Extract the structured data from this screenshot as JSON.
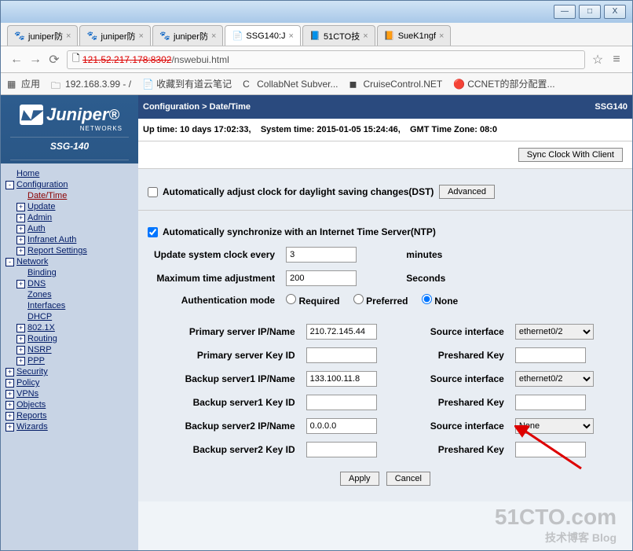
{
  "window": {
    "min": "—",
    "max": "□",
    "close": "X"
  },
  "tabs": [
    {
      "label": "juniper防",
      "fav": "🐾"
    },
    {
      "label": "juniper防",
      "fav": "🐾"
    },
    {
      "label": "juniper防",
      "fav": "🐾"
    },
    {
      "label": "SSG140:J",
      "fav": "📄",
      "active": true
    },
    {
      "label": "51CTO技",
      "fav": "📘"
    },
    {
      "label": "SueK1ngf",
      "fav": "📙"
    }
  ],
  "address": {
    "strike": "121.52.217.178:8302",
    "path": "/nswebui.html",
    "star": "☆",
    "menu": "≡"
  },
  "bookmarks": [
    {
      "ico": "▦",
      "label": "应用"
    },
    {
      "ico": "🗀",
      "label": "192.168.3.99 - /"
    },
    {
      "ico": "📄",
      "label": "收藏到有道云笔记"
    },
    {
      "ico": "C",
      "label": "CollabNet Subver..."
    },
    {
      "ico": "◼",
      "label": "CruiseControl.NET"
    },
    {
      "ico": "🔴",
      "label": "CCNET的部分配置..."
    }
  ],
  "bluebar": {
    "breadcrumb": "Configuration > Date/Time",
    "tag": "SSG140"
  },
  "logo": {
    "brand": "Juniper",
    "networks": "NETWORKS",
    "model": "SSG-140"
  },
  "tree": [
    {
      "ind": 0,
      "tg": "",
      "lbl": "Home"
    },
    {
      "ind": 0,
      "tg": "-",
      "lbl": "Configuration"
    },
    {
      "ind": 1,
      "tg": "",
      "lbl": "Date/Time",
      "sel": true
    },
    {
      "ind": 1,
      "tg": "+",
      "lbl": "Update"
    },
    {
      "ind": 1,
      "tg": "+",
      "lbl": "Admin"
    },
    {
      "ind": 1,
      "tg": "+",
      "lbl": "Auth"
    },
    {
      "ind": 1,
      "tg": "+",
      "lbl": "Infranet Auth"
    },
    {
      "ind": 1,
      "tg": "+",
      "lbl": "Report Settings"
    },
    {
      "ind": 0,
      "tg": "-",
      "lbl": "Network"
    },
    {
      "ind": 1,
      "tg": "",
      "lbl": "Binding"
    },
    {
      "ind": 1,
      "tg": "+",
      "lbl": "DNS"
    },
    {
      "ind": 1,
      "tg": "",
      "lbl": "Zones"
    },
    {
      "ind": 1,
      "tg": "",
      "lbl": "Interfaces"
    },
    {
      "ind": 1,
      "tg": "",
      "lbl": "DHCP"
    },
    {
      "ind": 1,
      "tg": "+",
      "lbl": "802.1X"
    },
    {
      "ind": 1,
      "tg": "+",
      "lbl": "Routing"
    },
    {
      "ind": 1,
      "tg": "+",
      "lbl": "NSRP"
    },
    {
      "ind": 1,
      "tg": "+",
      "lbl": "PPP"
    },
    {
      "ind": 0,
      "tg": "+",
      "lbl": "Security"
    },
    {
      "ind": 0,
      "tg": "+",
      "lbl": "Policy"
    },
    {
      "ind": 0,
      "tg": "+",
      "lbl": "VPNs"
    },
    {
      "ind": 0,
      "tg": "+",
      "lbl": "Objects"
    },
    {
      "ind": 0,
      "tg": "+",
      "lbl": "Reports"
    },
    {
      "ind": 0,
      "tg": "+",
      "lbl": "Wizards"
    }
  ],
  "status": {
    "uptime": "Up time: 10 days 17:02:33,",
    "systime": "System time: 2015-01-05 15:24:46,",
    "tz": "GMT Time Zone: 08:0"
  },
  "buttons": {
    "sync": "Sync Clock With Client",
    "advanced": "Advanced",
    "apply": "Apply",
    "cancel": "Cancel"
  },
  "dst": {
    "checked": false,
    "label": "Automatically adjust clock for daylight saving changes(DST)"
  },
  "ntp": {
    "checked": true,
    "label": "Automatically synchronize with an Internet Time Server(NTP)",
    "interval_lbl": "Update system clock every",
    "interval_val": "3",
    "interval_unit": "minutes",
    "maxadj_lbl": "Maximum time adjustment",
    "maxadj_val": "200",
    "maxadj_unit": "Seconds",
    "auth_lbl": "Authentication mode",
    "auth_required": "Required",
    "auth_preferred": "Preferred",
    "auth_none": "None",
    "auth_sel": "none"
  },
  "servers": {
    "labels": {
      "srcif": "Source interface",
      "keyid": "Key ID",
      "psk": "Preshared Key"
    },
    "primary": {
      "ip_lbl": "Primary server IP/Name",
      "ip": "210.72.145.44",
      "srcif": "ethernet0/2",
      "keyid_lbl": "Primary server Key ID",
      "keyid": "",
      "psk": ""
    },
    "b1": {
      "ip_lbl": "Backup server1 IP/Name",
      "ip": "133.100.11.8",
      "srcif": "ethernet0/2",
      "keyid_lbl": "Backup server1 Key ID",
      "keyid": "",
      "psk": ""
    },
    "b2": {
      "ip_lbl": "Backup server2 IP/Name",
      "ip": "0.0.0.0",
      "srcif": "None",
      "keyid_lbl": "Backup server2 Key ID",
      "keyid": "",
      "psk": ""
    }
  },
  "watermark": {
    "main": "51CTO.com",
    "sub": "技术博客   Blog"
  }
}
